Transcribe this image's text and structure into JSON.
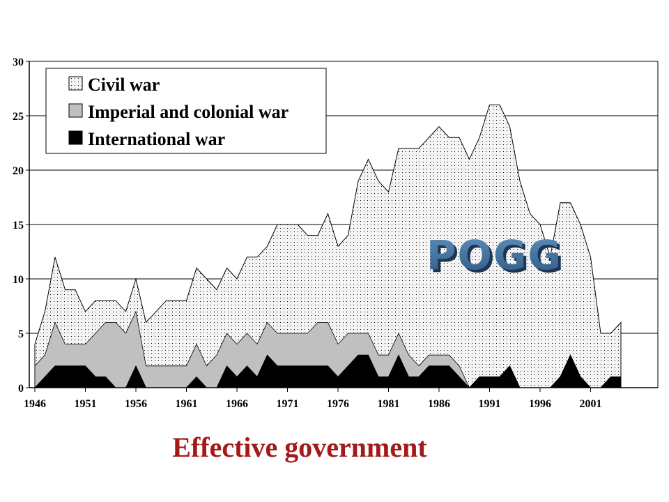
{
  "caption": "Effective government",
  "watermark": {
    "text": "POGG",
    "fill": "#3a6b98",
    "shadow": "#1e3452"
  },
  "colors": {
    "civil": "#f4f4f4",
    "imperial": "#c0c0c0",
    "international": "#000000",
    "stroke": "#000000"
  },
  "chart_data": {
    "type": "area",
    "stacked": true,
    "x": [
      1946,
      1947,
      1948,
      1949,
      1950,
      1951,
      1952,
      1953,
      1954,
      1955,
      1956,
      1957,
      1958,
      1959,
      1960,
      1961,
      1962,
      1963,
      1964,
      1965,
      1966,
      1967,
      1968,
      1969,
      1970,
      1971,
      1972,
      1973,
      1974,
      1975,
      1976,
      1977,
      1978,
      1979,
      1980,
      1981,
      1982,
      1983,
      1984,
      1985,
      1986,
      1987,
      1988,
      1989,
      1990,
      1991,
      1992,
      1993,
      1994,
      1995,
      1996,
      1997,
      1998,
      1999,
      2000,
      2001,
      2002,
      2003,
      2004
    ],
    "x_ticks": [
      "1946",
      "1951",
      "1956",
      "1961",
      "1966",
      "1971",
      "1976",
      "1981",
      "1986",
      "1991",
      "1996",
      "2001"
    ],
    "ylim": [
      0,
      30
    ],
    "y_ticks": [
      "0",
      "5",
      "10",
      "15",
      "20",
      "25",
      "30"
    ],
    "grid": true,
    "legend_position": "top-left",
    "series": [
      {
        "name": "International war",
        "pattern": "solid-black",
        "values": [
          0,
          1,
          2,
          2,
          2,
          2,
          1,
          1,
          0,
          0,
          2,
          0,
          0,
          0,
          0,
          0,
          1,
          0,
          0,
          2,
          1,
          2,
          1,
          3,
          2,
          2,
          2,
          2,
          2,
          2,
          1,
          2,
          3,
          3,
          1,
          1,
          3,
          1,
          1,
          2,
          2,
          2,
          1,
          0,
          1,
          1,
          1,
          2,
          0,
          0,
          0,
          0,
          1,
          3,
          1,
          0,
          0,
          1,
          1
        ]
      },
      {
        "name": "Imperial and colonial war",
        "pattern": "solid-gray",
        "values": [
          2,
          2,
          4,
          2,
          2,
          2,
          4,
          5,
          6,
          5,
          5,
          2,
          2,
          2,
          2,
          2,
          3,
          2,
          3,
          3,
          3,
          3,
          3,
          3,
          3,
          3,
          3,
          3,
          4,
          4,
          3,
          3,
          2,
          2,
          2,
          2,
          2,
          2,
          1,
          1,
          1,
          1,
          1,
          0,
          0,
          0,
          0,
          0,
          0,
          0,
          0,
          0,
          0,
          0,
          0,
          0,
          0,
          0,
          0
        ]
      },
      {
        "name": "Civil war",
        "pattern": "dotted",
        "values": [
          2,
          4,
          6,
          5,
          5,
          3,
          3,
          2,
          2,
          2,
          3,
          4,
          5,
          6,
          6,
          6,
          7,
          8,
          6,
          6,
          6,
          7,
          8,
          7,
          10,
          10,
          10,
          9,
          8,
          10,
          9,
          9,
          14,
          16,
          16,
          15,
          17,
          19,
          20,
          20,
          21,
          20,
          21,
          21,
          22,
          25,
          25,
          22,
          19,
          16,
          15,
          12,
          16,
          14,
          14,
          12,
          5,
          4,
          5
        ]
      }
    ]
  }
}
